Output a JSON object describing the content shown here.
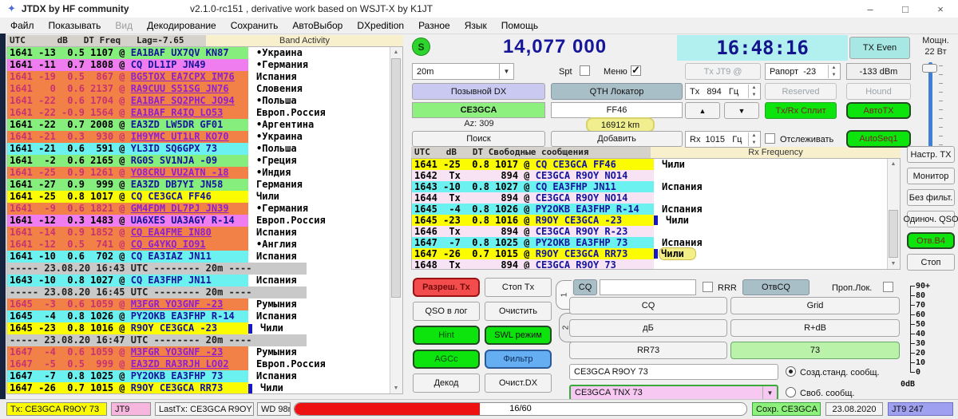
{
  "window": {
    "app_icon": "✦",
    "title": "JTDX  by HF community",
    "subtitle": "v2.1.0-rc151 , derivative work based on WSJT-X by K1JT",
    "minimize": "–",
    "maximize": "□",
    "close": "×"
  },
  "menu": [
    {
      "label": "Файл"
    },
    {
      "label": "Показывать"
    },
    {
      "label": "Вид",
      "disabled": true
    },
    {
      "label": "Декодирование"
    },
    {
      "label": "Сохранить"
    },
    {
      "label": "АвтоВыбор"
    },
    {
      "label": "DXpedition"
    },
    {
      "label": "Разное"
    },
    {
      "label": "Язык"
    },
    {
      "label": "Помощь"
    }
  ],
  "band_activity": {
    "header": "UTC      dB   DT Freq   Lag=-7.65",
    "title": "Band Activity",
    "rows": [
      {
        "p": "1641 -13  0.5 1107",
        "m": "EA1BAF UX7QV KN87",
        "c": "•Украина",
        "bg": "green"
      },
      {
        "p": "1641 -11  0.7 1808",
        "m": "CQ DL1IP JN49",
        "c": "•Германия",
        "bg": "magenta"
      },
      {
        "p": "1641 -19  0.5  867",
        "m": "BG5TOX EA7CPX IM76",
        "c": "Испания",
        "bg": "orange",
        "link": true
      },
      {
        "p": "1641   0  0.6 2137",
        "m": "RA9CUU S51SG JN76",
        "c": "Словения",
        "bg": "orange",
        "link": true
      },
      {
        "p": "1641 -22  0.6 1704",
        "m": "EA1BAF SQ2PHC JO94",
        "c": "•Польша",
        "bg": "orange",
        "link": true
      },
      {
        "p": "1641 -22 -0.9 1564",
        "m": "EA1BAF R4IQ LO53",
        "c": "Европ.Россия",
        "bg": "orange",
        "link": true
      },
      {
        "p": "1641 -22  0.7 2008",
        "m": "EA3ZD LW5DR GF01",
        "c": "•Аргентина",
        "bg": "green"
      },
      {
        "p": "1641 -21  0.3  930",
        "m": "IH9YMC UT1LR KO70",
        "c": "•Украина",
        "bg": "orange",
        "link": true
      },
      {
        "p": "1641 -21  0.6  591",
        "m": "YL3ID SQ6GPX 73",
        "c": "•Польша",
        "bg": "cyan"
      },
      {
        "p": "1641  -2  0.6 2165",
        "m": "RG0S SV1NJA -09",
        "c": "•Греция",
        "bg": "green"
      },
      {
        "p": "1641 -25  0.9 1261",
        "m": "YO8CRU VU2ATN -18",
        "c": "•Индия",
        "bg": "orange",
        "link": true
      },
      {
        "p": "1641 -27  0.9  999",
        "m": "EA3ZD DB7YI JN58",
        "c": "Германия",
        "bg": "green"
      },
      {
        "p": "1641 -25  0.8 1017",
        "m": "CQ CE3GCA FF46",
        "c": "Чили",
        "bg": "yellow"
      },
      {
        "p": "1641  -9  0.6 1821",
        "m": "GM4FDM DL7PJ JN39",
        "c": "•Германия",
        "bg": "orange",
        "link": true
      },
      {
        "p": "1641 -12  0.3 1483",
        "m": "UA6XES UA3AGY R-14",
        "c": "Европ.Россия",
        "bg": "magenta"
      },
      {
        "p": "1641 -14  0.9 1852",
        "m": "CQ EA4FME IN80",
        "c": "Испания",
        "bg": "orange",
        "link": true
      },
      {
        "p": "1641 -12  0.5  741",
        "m": "CQ G4YKQ IO91",
        "c": "•Англия",
        "bg": "orange",
        "link": true
      },
      {
        "p": "1641 -10  0.6  702",
        "m": "CQ EA3IAZ JN11",
        "c": "Испания",
        "bg": "cyan"
      },
      {
        "sep": true,
        "text": "----- 23.08.20 16:43 UTC -------- 20m ----"
      },
      {
        "p": "1643 -10  0.8 1027",
        "m": "CQ EA3FHP JN11",
        "c": "Испания",
        "bg": "cyan"
      },
      {
        "sep": true,
        "text": "----- 23.08.20 16:45 UTC -------- 20m ----"
      },
      {
        "p": "1645  -3  0.6 1059",
        "m": "M3FGR YO3GNF -23",
        "c": "Румыния",
        "bg": "orange",
        "link": true
      },
      {
        "p": "1645  -4  0.8 1026",
        "m": "PY2OKB EA3FHP R-14",
        "c": "Испания",
        "bg": "cyan"
      },
      {
        "p": "1645 -23  0.8 1016",
        "m": "R9OY CE3GCA -23",
        "c": "Чили",
        "bg": "yellow",
        "marker": true
      },
      {
        "sep": true,
        "text": "----- 23.08.20 16:47 UTC -------- 20m ----"
      },
      {
        "p": "1647  -4  0.6 1059",
        "m": "M3FGR YO3GNF -23",
        "c": "Румыния",
        "bg": "orange",
        "link": true
      },
      {
        "p": "1647  -5  0.5  999",
        "m": "EA3ZD RA3RJH LO02",
        "c": "Европ.Россия",
        "bg": "orange",
        "link": true
      },
      {
        "p": "1647  -7  0.8 1025",
        "m": "PY2OKB EA3FHP 73",
        "c": "Испания",
        "bg": "cyan"
      },
      {
        "p": "1647 -26  0.7 1015",
        "m": "R9OY CE3GCA RR73",
        "c": "Чили",
        "bg": "yellow",
        "marker": true
      }
    ]
  },
  "rx_frequency": {
    "header": "UTC   dB   DT Свободные сообщения",
    "title": "Rx Frequency",
    "rows": [
      {
        "p": "1641 -25  0.8 1017",
        "m": "CQ CE3GCA FF46",
        "c": "Чили",
        "bg": "yellow"
      },
      {
        "p": "1642  Tx       894",
        "m": "CE3GCA R9OY NO14",
        "c": "",
        "bg": "tx"
      },
      {
        "p": "1643 -10  0.8 1027",
        "m": "CQ EA3FHP JN11",
        "c": "Испания",
        "bg": "cyan"
      },
      {
        "p": "1644  Tx       894",
        "m": "CE3GCA R9OY NO14",
        "c": "",
        "bg": "tx"
      },
      {
        "p": "1645  -4  0.8 1026",
        "m": "PY2OKB EA3FHP R-14",
        "c": "Испания",
        "bg": "cyan"
      },
      {
        "p": "1645 -23  0.8 1016",
        "m": "R9OY CE3GCA -23",
        "c": "Чили",
        "bg": "yellow",
        "marker": true
      },
      {
        "p": "1646  Tx       894",
        "m": "CE3GCA R9OY R-23",
        "c": "",
        "bg": "tx"
      },
      {
        "p": "1647  -7  0.8 1025",
        "m": "PY2OKB EA3FHP 73",
        "c": "Испания",
        "bg": "cyan"
      },
      {
        "p": "1647 -26  0.7 1015",
        "m": "R9OY CE3GCA RR73",
        "c": "Чили",
        "bg": "yellow",
        "marker": true,
        "hl": true
      },
      {
        "p": "1648  Tx       894",
        "m": "CE3GCA R9OY 73",
        "c": "",
        "bg": "tx"
      }
    ]
  },
  "controls": {
    "s_button": "S",
    "frequency": "14,077 000",
    "clock": "16:48:16",
    "tx_even": "TX Even",
    "power_label": "Мощн.\n22 Вт",
    "band": "20m",
    "spt": "Spt",
    "spt_checked": false,
    "menu_cb": "Меню",
    "menu_checked": true,
    "tx_mode": "Tx JT9  @",
    "report": "Рапорт  -23",
    "dbm": "-133 dBm",
    "callsign_dx": "Позывной DX",
    "qth_locator": "QTH Локатор",
    "tx_hz": "Tx   894   Гц",
    "reserved": "Reserved",
    "hound": "Hound",
    "dx_call": "CE3GCA",
    "dx_grid": "FF46",
    "azimuth": "Az: 309",
    "distance": "16912 km",
    "search": "Поиск",
    "add": "Добавить",
    "up": "▲",
    "down": "▼",
    "split": "Tx/Rx Сплит",
    "autotx": "АвтоTX",
    "rx_hz": "Rx  1015   Гц",
    "track": "Отслеживать",
    "track_checked": false,
    "autoseq": "AutoSeq1"
  },
  "right_buttons": [
    {
      "label": "Настр. TX"
    },
    {
      "label": "Монитор"
    },
    {
      "label": "Без фильт."
    },
    {
      "label": "Одиноч. QSO"
    },
    {
      "label": "Отв.B4",
      "green": true
    },
    {
      "label": "Стоп"
    }
  ],
  "tx_controls": {
    "enable_tx": "Разреш. Tx",
    "halt_tx": "Стоп Tx",
    "log_qso": "QSO в лог",
    "erase": "Очистить",
    "hint": "Hint",
    "swl": "SWL режим",
    "agcc": "AGCc",
    "filter": "Фильтр",
    "decode": "Декод",
    "clear_dx": "Очист.DX",
    "tab1": "1",
    "tab2": "2"
  },
  "messages": {
    "cq_dir": "CQ",
    "free_input": "",
    "rrr": "RRR",
    "rrr_checked": false,
    "answer_cq": "ОтвCQ",
    "skip_loc": "Проп.Лок.",
    "skip_checked": false,
    "btn_cq": "CQ",
    "btn_grid": "Grid",
    "btn_db": "дБ",
    "btn_rdb": "R+dB",
    "btn_rr73": "RR73",
    "btn_73": "73",
    "std_msg": "CE3GCA R9OY 73",
    "gen_std": "Созд.станд. сообщ.",
    "gen_std_selected": true,
    "free_msg": "CE3GCA TNX 73",
    "free_label": "Своб. сообщ.",
    "free_selected": false
  },
  "meter": {
    "ticks": [
      "90+",
      "80",
      "70",
      "60",
      "50",
      "40",
      "30",
      "20",
      "10",
      "0"
    ],
    "unit": "0dB"
  },
  "status": {
    "tx_msg": "Tx: CE3GCA R9OY 73",
    "mode": "JT9",
    "last_tx": "LastTx: CE3GCA R9OY 73",
    "watchdog": "WD 98m",
    "progress_text": "16/60",
    "progress_pct": 41,
    "save": "Сохр. CE3GCA",
    "date": "23.08.2020",
    "mode_count": "JT9  247"
  }
}
